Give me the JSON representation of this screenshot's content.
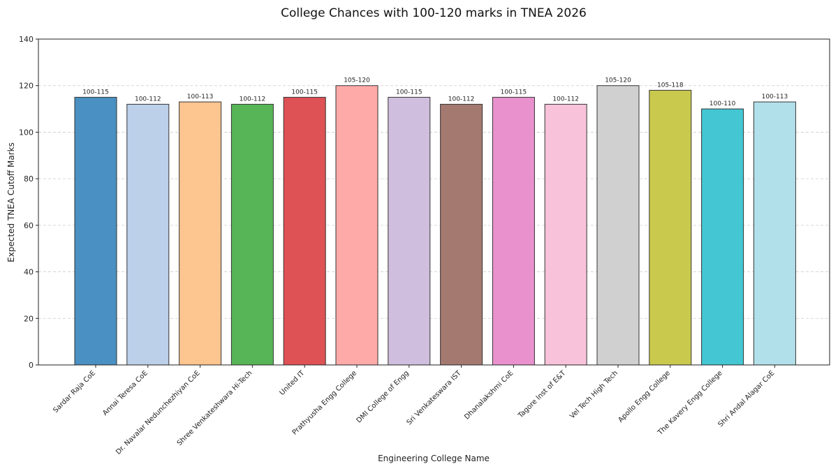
{
  "chart_data": {
    "type": "bar",
    "title": "College Chances with 100-120 marks in TNEA 2026",
    "xlabel": "Engineering College Name",
    "ylabel": "Expected TNEA Cutoff Marks",
    "ylim": [
      0,
      140
    ],
    "yticks": [
      0,
      20,
      40,
      60,
      80,
      100,
      120,
      140
    ],
    "grid": "horizontal dashed",
    "categories": [
      "Sardar Raja CoE",
      "Annai Teresa CoE",
      "Dr. Navalar Nedunchezhiyan CoE",
      "Shree Venkateshwara Hi-Tech",
      "United IT",
      "Prathyusha Engg College",
      "DMI College of Engg",
      "Sri Venkateswara IST",
      "Dhanalakshmi CoE",
      "Tagore Inst of E&T",
      "Vel Tech High Tech",
      "Apollo Engg College",
      "The Kavery Engg College",
      "Shri Andal Alagar CoE"
    ],
    "values": [
      115,
      112,
      113,
      112,
      115,
      120,
      115,
      112,
      115,
      112,
      120,
      118,
      110,
      113
    ],
    "data_labels": [
      "100-115",
      "100-112",
      "100-113",
      "100-112",
      "100-115",
      "105-120",
      "100-115",
      "100-112",
      "100-115",
      "100-112",
      "105-120",
      "105-118",
      "100-110",
      "100-113"
    ],
    "colors": [
      "#4a90c2",
      "#bcd0ea",
      "#fdc590",
      "#57b557",
      "#de5155",
      "#fdaaa9",
      "#cfbedd",
      "#a47970",
      "#e891cd",
      "#f7c2da",
      "#d0d0d0",
      "#c9c94e",
      "#44c6d3",
      "#b2e0ea"
    ]
  }
}
